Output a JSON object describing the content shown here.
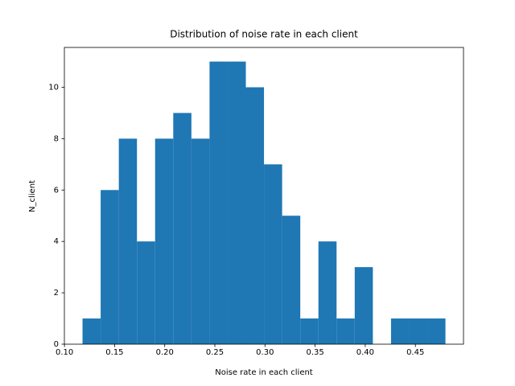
{
  "chart_data": {
    "type": "histogram",
    "title": "Distribution of noise rate in each client",
    "x_label": "Noise rate in each client",
    "y_label": "N_client",
    "bins": [
      0.118,
      0.1361,
      0.1542,
      0.1723,
      0.1904,
      0.2085,
      0.2266,
      0.2447,
      0.2628,
      0.2809,
      0.299,
      0.3171,
      0.3352,
      0.3533,
      0.3714,
      0.3895,
      0.4076,
      0.4257,
      0.4438,
      0.4619,
      0.48
    ],
    "values": [
      1,
      6,
      8,
      4,
      8,
      9,
      8,
      11,
      11,
      10,
      7,
      5,
      1,
      4,
      1,
      3,
      0,
      1,
      1,
      1
    ],
    "color": "#1f77b4",
    "xlim": [
      0.0999,
      0.498
    ],
    "xticks": [
      {
        "value": 0.1,
        "label": "0.10"
      },
      0.15,
      {
        "value": 0.2,
        "label": "0.20"
      },
      0.25,
      {
        "value": 0.3,
        "label": "0.30"
      },
      0.35,
      {
        "value": 0.4,
        "label": "0.40"
      },
      0.45
    ],
    "ylim": [
      0,
      11.55
    ],
    "yticks": [
      0,
      2,
      4,
      6,
      8,
      10
    ]
  }
}
